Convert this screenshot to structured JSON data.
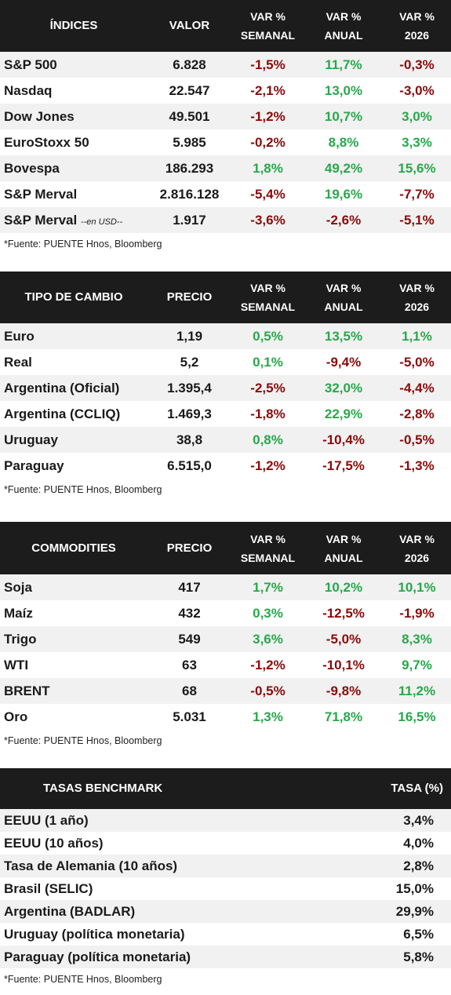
{
  "indices": {
    "headers": [
      "ÍNDICES",
      "VALOR",
      "VAR %",
      "SEMANAL",
      "VAR %",
      "ANUAL",
      "VAR %",
      "2026"
    ],
    "rows": [
      {
        "name": "S&P 500",
        "suffix": "",
        "value": "6.828",
        "week": "-1,5%",
        "year": "11,7%",
        "ytd": "-0,3%"
      },
      {
        "name": "Nasdaq",
        "suffix": "",
        "value": "22.547",
        "week": "-2,1%",
        "year": "13,0%",
        "ytd": "-3,0%"
      },
      {
        "name": "Dow Jones",
        "suffix": "",
        "value": "49.501",
        "week": "-1,2%",
        "year": "10,7%",
        "ytd": "3,0%"
      },
      {
        "name": "EuroStoxx 50",
        "suffix": "",
        "value": "5.985",
        "week": "-0,2%",
        "year": "8,8%",
        "ytd": "3,3%"
      },
      {
        "name": "Bovespa",
        "suffix": "",
        "value": "186.293",
        "week": "1,8%",
        "year": "49,2%",
        "ytd": "15,6%"
      },
      {
        "name": "S&P Merval",
        "suffix": "",
        "value": "2.816.128",
        "week": "-5,4%",
        "year": "19,6%",
        "ytd": "-7,7%"
      },
      {
        "name": "S&P Merval",
        "suffix": "--en USD--",
        "value": "1.917",
        "week": "-3,6%",
        "year": "-2,6%",
        "ytd": "-5,1%"
      }
    ],
    "note": "*Fuente: PUENTE Hnos, Bloomberg"
  },
  "fx": {
    "headers": [
      "TIPO DE CAMBIO",
      "PRECIO",
      "VAR %",
      "SEMANAL",
      "VAR %",
      "ANUAL",
      "VAR %",
      "2026"
    ],
    "rows": [
      {
        "name": "Euro",
        "value": "1,19",
        "week": "0,5%",
        "year": "13,5%",
        "ytd": "1,1%"
      },
      {
        "name": "Real",
        "value": "5,2",
        "week": "0,1%",
        "year": "-9,4%",
        "ytd": "-5,0%"
      },
      {
        "name": "Argentina (Oficial)",
        "value": "1.395,4",
        "week": "-2,5%",
        "year": "32,0%",
        "ytd": "-4,4%"
      },
      {
        "name": "Argentina (CCLIQ)",
        "value": "1.469,3",
        "week": "-1,8%",
        "year": "22,9%",
        "ytd": "-2,8%"
      },
      {
        "name": "Uruguay",
        "value": "38,8",
        "week": "0,8%",
        "year": "-10,4%",
        "ytd": "-0,5%"
      },
      {
        "name": "Paraguay",
        "value": "6.515,0",
        "week": "-1,2%",
        "year": "-17,5%",
        "ytd": "-1,3%"
      }
    ],
    "note": "*Fuente: PUENTE Hnos, Bloomberg"
  },
  "commodities": {
    "headers": [
      "COMMODITIES",
      "PRECIO",
      "VAR %",
      "SEMANAL",
      "VAR %",
      "ANUAL",
      "VAR %",
      "2026"
    ],
    "rows": [
      {
        "name": "Soja",
        "value": "417",
        "week": "1,7%",
        "year": "10,2%",
        "ytd": "10,1%"
      },
      {
        "name": "Maíz",
        "value": "432",
        "week": "0,3%",
        "year": "-12,5%",
        "ytd": "-1,9%"
      },
      {
        "name": "Trigo",
        "value": "549",
        "week": "3,6%",
        "year": "-5,0%",
        "ytd": "8,3%"
      },
      {
        "name": "WTI",
        "value": "63",
        "week": "-1,2%",
        "year": "-10,1%",
        "ytd": "9,7%"
      },
      {
        "name": "BRENT",
        "value": "68",
        "week": "-0,5%",
        "year": "-9,8%",
        "ytd": "11,2%"
      },
      {
        "name": "Oro",
        "value": "5.031",
        "week": "1,3%",
        "year": "71,8%",
        "ytd": "16,5%"
      }
    ],
    "note": "*Fuente: PUENTE Hnos, Bloomberg"
  },
  "rates": {
    "headers": [
      "TASAS BENCHMARK",
      "TASA (%)"
    ],
    "rows": [
      {
        "name": "EEUU (1 año)",
        "value": "3,4%"
      },
      {
        "name": "EEUU (10 años)",
        "value": "4,0%"
      },
      {
        "name": "Tasa de Alemania (10 años)",
        "value": "2,8%"
      },
      {
        "name": "Brasil (SELIC)",
        "value": "15,0%"
      },
      {
        "name": "Argentina (BADLAR)",
        "value": "29,9%"
      },
      {
        "name": "Uruguay (política monetaria)",
        "value": "6,5%"
      },
      {
        "name": "Paraguay (política monetaria)",
        "value": "5,8%"
      }
    ],
    "note": "*Fuente: PUENTE Hnos, Bloomberg"
  },
  "colors": {
    "negative": "#8b0a0a",
    "positive": "#27a84a",
    "header_bg": "#1c1c1c"
  }
}
